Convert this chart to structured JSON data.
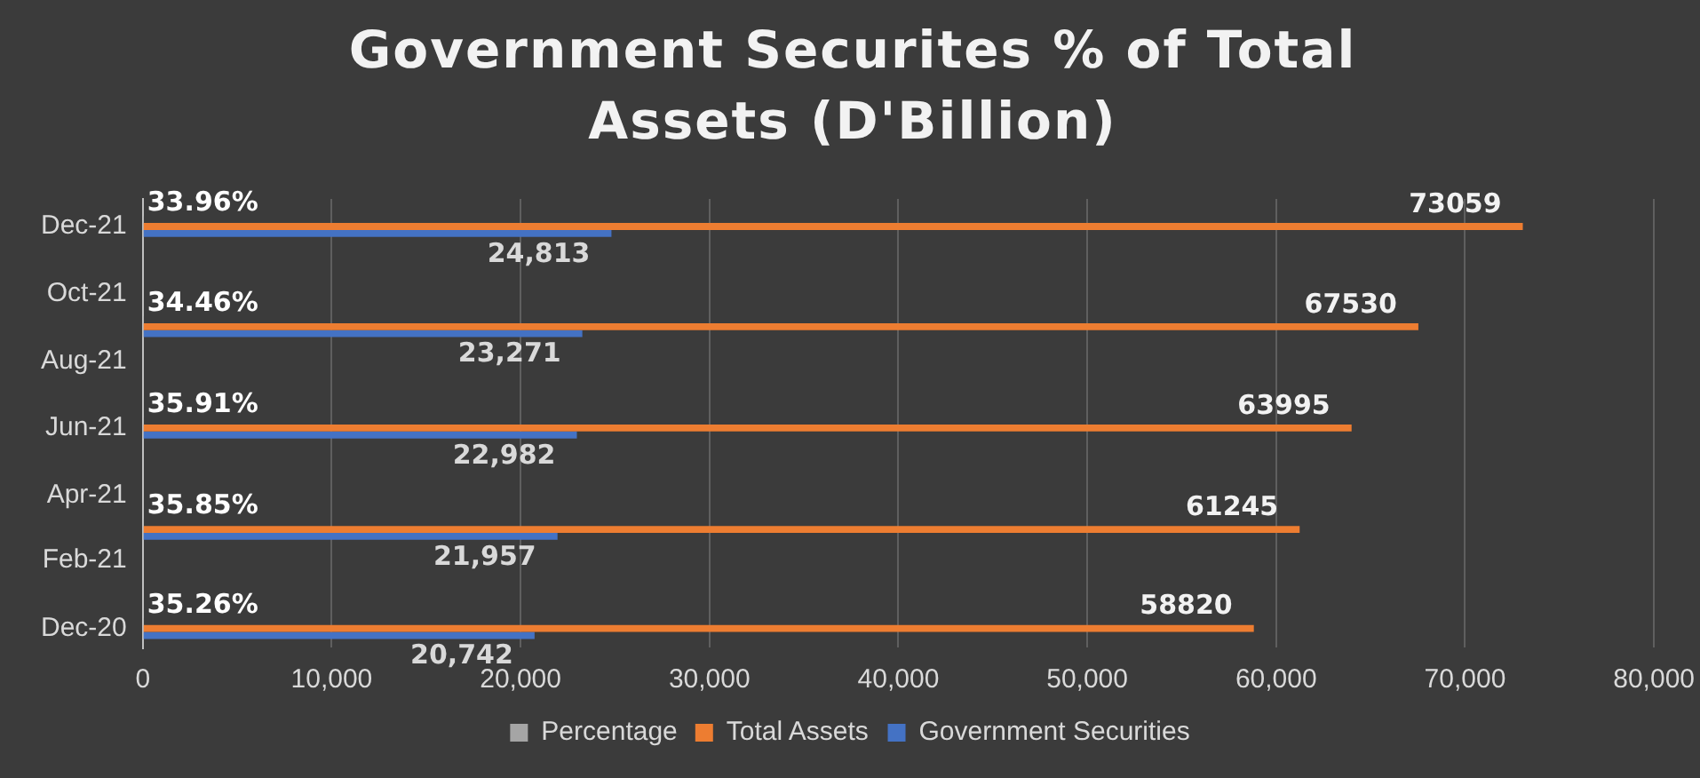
{
  "chart_data": {
    "type": "bar",
    "orientation": "horizontal",
    "title": "Government Securites % of Total Assets (D'Billion)",
    "x": [
      "2020-12",
      "2021-03",
      "2021-06",
      "2021-09",
      "2021-12"
    ],
    "ylim": [
      "2020-11-13",
      "2021-12-26"
    ],
    "yticks": [
      {
        "value": "2020-12",
        "label": "Dec-20"
      },
      {
        "value": "2021-02",
        "label": "Feb-21"
      },
      {
        "value": "2021-04",
        "label": "Apr-21"
      },
      {
        "value": "2021-06",
        "label": "Jun-21"
      },
      {
        "value": "2021-08",
        "label": "Aug-21"
      },
      {
        "value": "2021-10",
        "label": "Oct-21"
      },
      {
        "value": "2021-12",
        "label": "Dec-21"
      }
    ],
    "xlim": [
      0,
      80000
    ],
    "xticks": [
      {
        "value": 0,
        "label": "0"
      },
      {
        "value": 10000,
        "label": "10,000"
      },
      {
        "value": 20000,
        "label": "20,000"
      },
      {
        "value": 30000,
        "label": "30,000"
      },
      {
        "value": 40000,
        "label": "40,000"
      },
      {
        "value": 50000,
        "label": "50,000"
      },
      {
        "value": 60000,
        "label": "60,000"
      },
      {
        "value": 70000,
        "label": "70,000"
      },
      {
        "value": 80000,
        "label": "80,000"
      }
    ],
    "series": [
      {
        "name": "Percentage",
        "color": "#a5a5a5",
        "values": [
          35.26,
          35.85,
          35.91,
          34.46,
          33.96
        ],
        "value_labels": [
          "35.26%",
          "35.85%",
          "35.91%",
          "34.46%",
          "33.96%"
        ]
      },
      {
        "name": "Total Assets",
        "color": "#ed7d31",
        "values": [
          58820,
          61245,
          63995,
          67530,
          73059
        ],
        "value_labels": [
          "58820",
          "61245",
          "63995",
          "67530",
          "73059"
        ]
      },
      {
        "name": "Government Securities",
        "color": "#4472c4",
        "values": [
          20742,
          21957,
          22982,
          23271,
          24813
        ],
        "value_labels": [
          "20,742",
          "21,957",
          "22,982",
          "23,271",
          "24,813"
        ]
      }
    ],
    "grid": "x",
    "legend": "bottom"
  }
}
